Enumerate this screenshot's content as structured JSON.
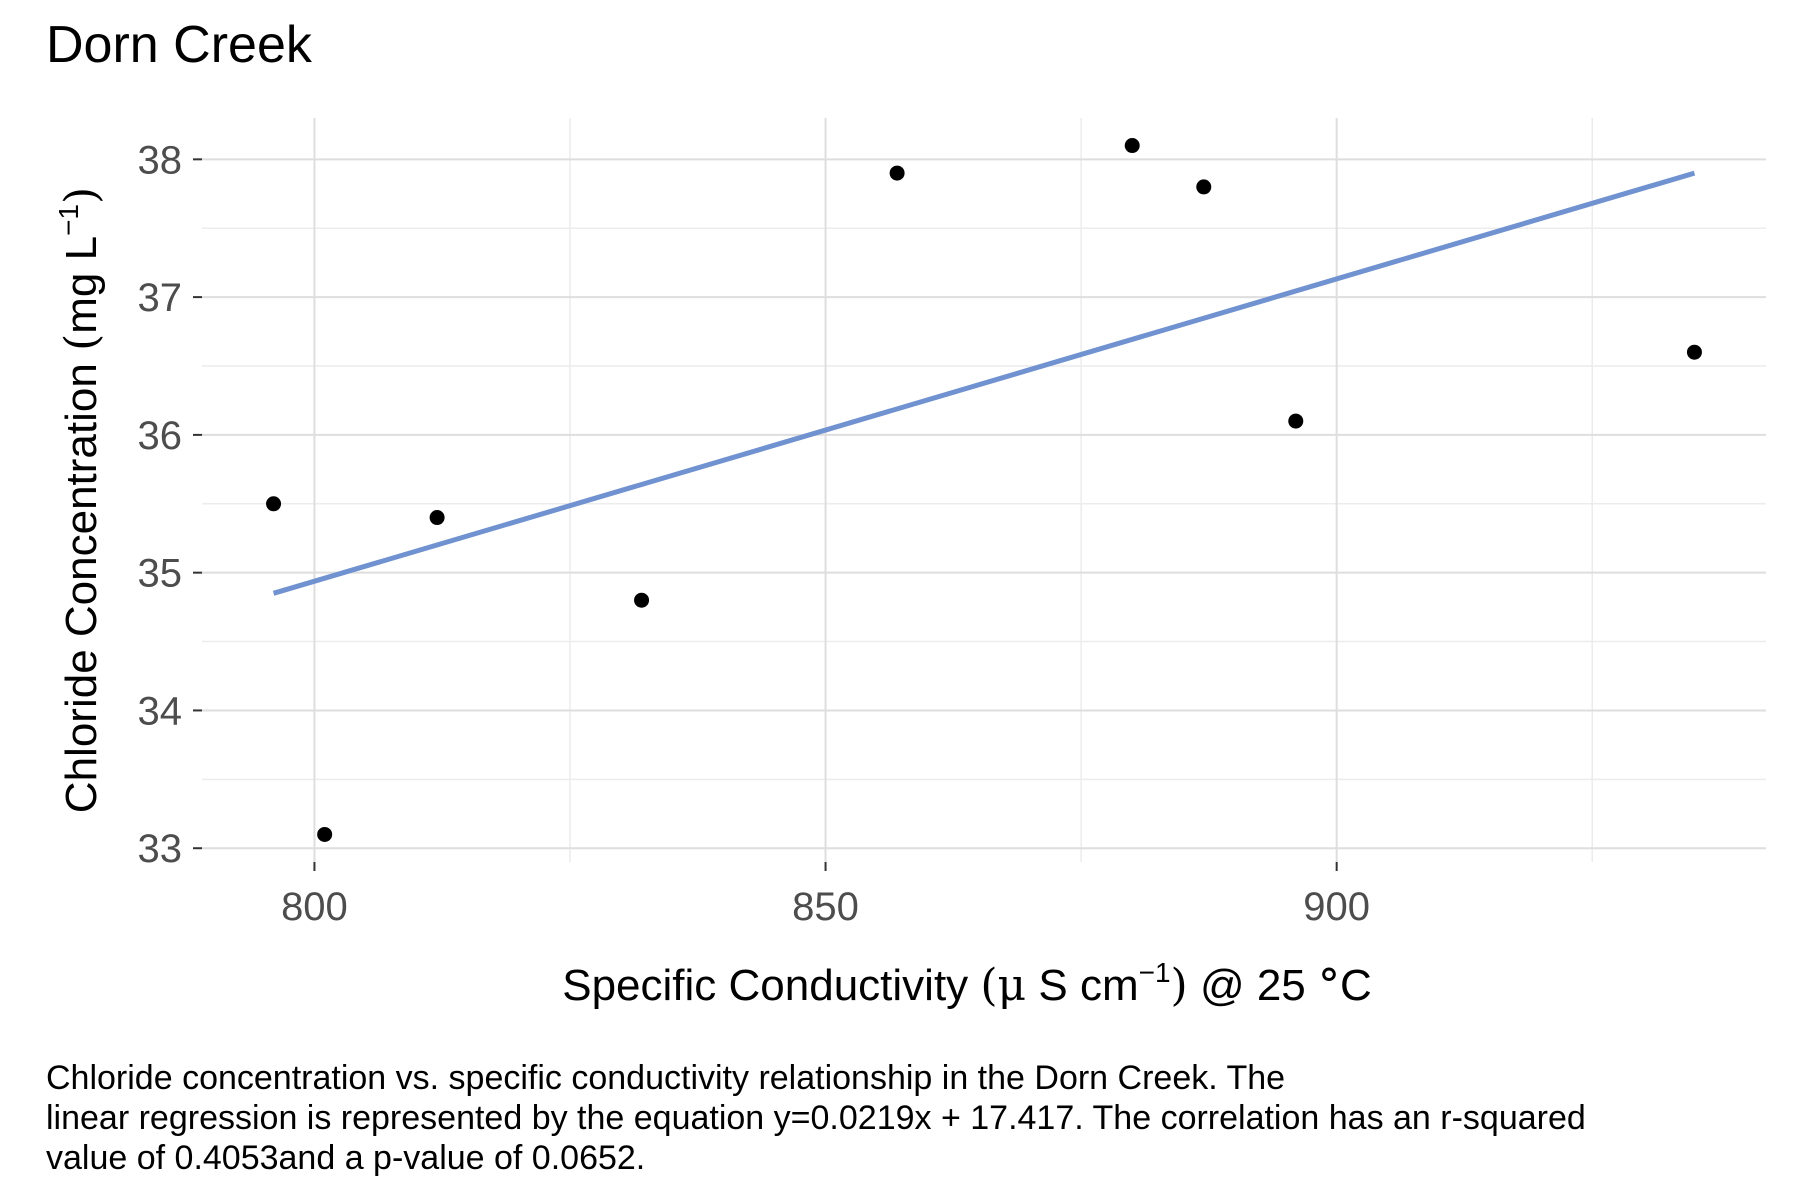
{
  "chart_data": {
    "type": "scatter",
    "title": "Dorn Creek",
    "xlabel": "Specific Conductivity (μ S cm⁻¹) @ 25 °C",
    "ylabel": "Chloride Concentration (mg L⁻¹)",
    "xlim": [
      789,
      942
    ],
    "ylim": [
      32.9,
      38.3
    ],
    "x_ticks": [
      800,
      850,
      900
    ],
    "y_ticks": [
      33,
      34,
      35,
      36,
      37,
      38
    ],
    "grid": true,
    "points": [
      {
        "x": 796,
        "y": 35.5
      },
      {
        "x": 801,
        "y": 33.1
      },
      {
        "x": 812,
        "y": 35.4
      },
      {
        "x": 832,
        "y": 34.8
      },
      {
        "x": 857,
        "y": 37.9
      },
      {
        "x": 880,
        "y": 38.1
      },
      {
        "x": 887,
        "y": 37.8
      },
      {
        "x": 896,
        "y": 36.1
      },
      {
        "x": 935,
        "y": 36.6
      }
    ],
    "trend_line": {
      "x": [
        796,
        935
      ],
      "y": [
        34.85,
        37.9
      ],
      "color": "#7092d0"
    },
    "point_color": "#000000"
  },
  "caption": [
    "Chloride concentration vs. specific conductivity relationship in the Dorn Creek. The",
    "linear regression is represented by the equation y=0.0219x + 17.417. The correlation has an r-squared",
    "value of 0.4053and a p-value of 0.0652."
  ]
}
